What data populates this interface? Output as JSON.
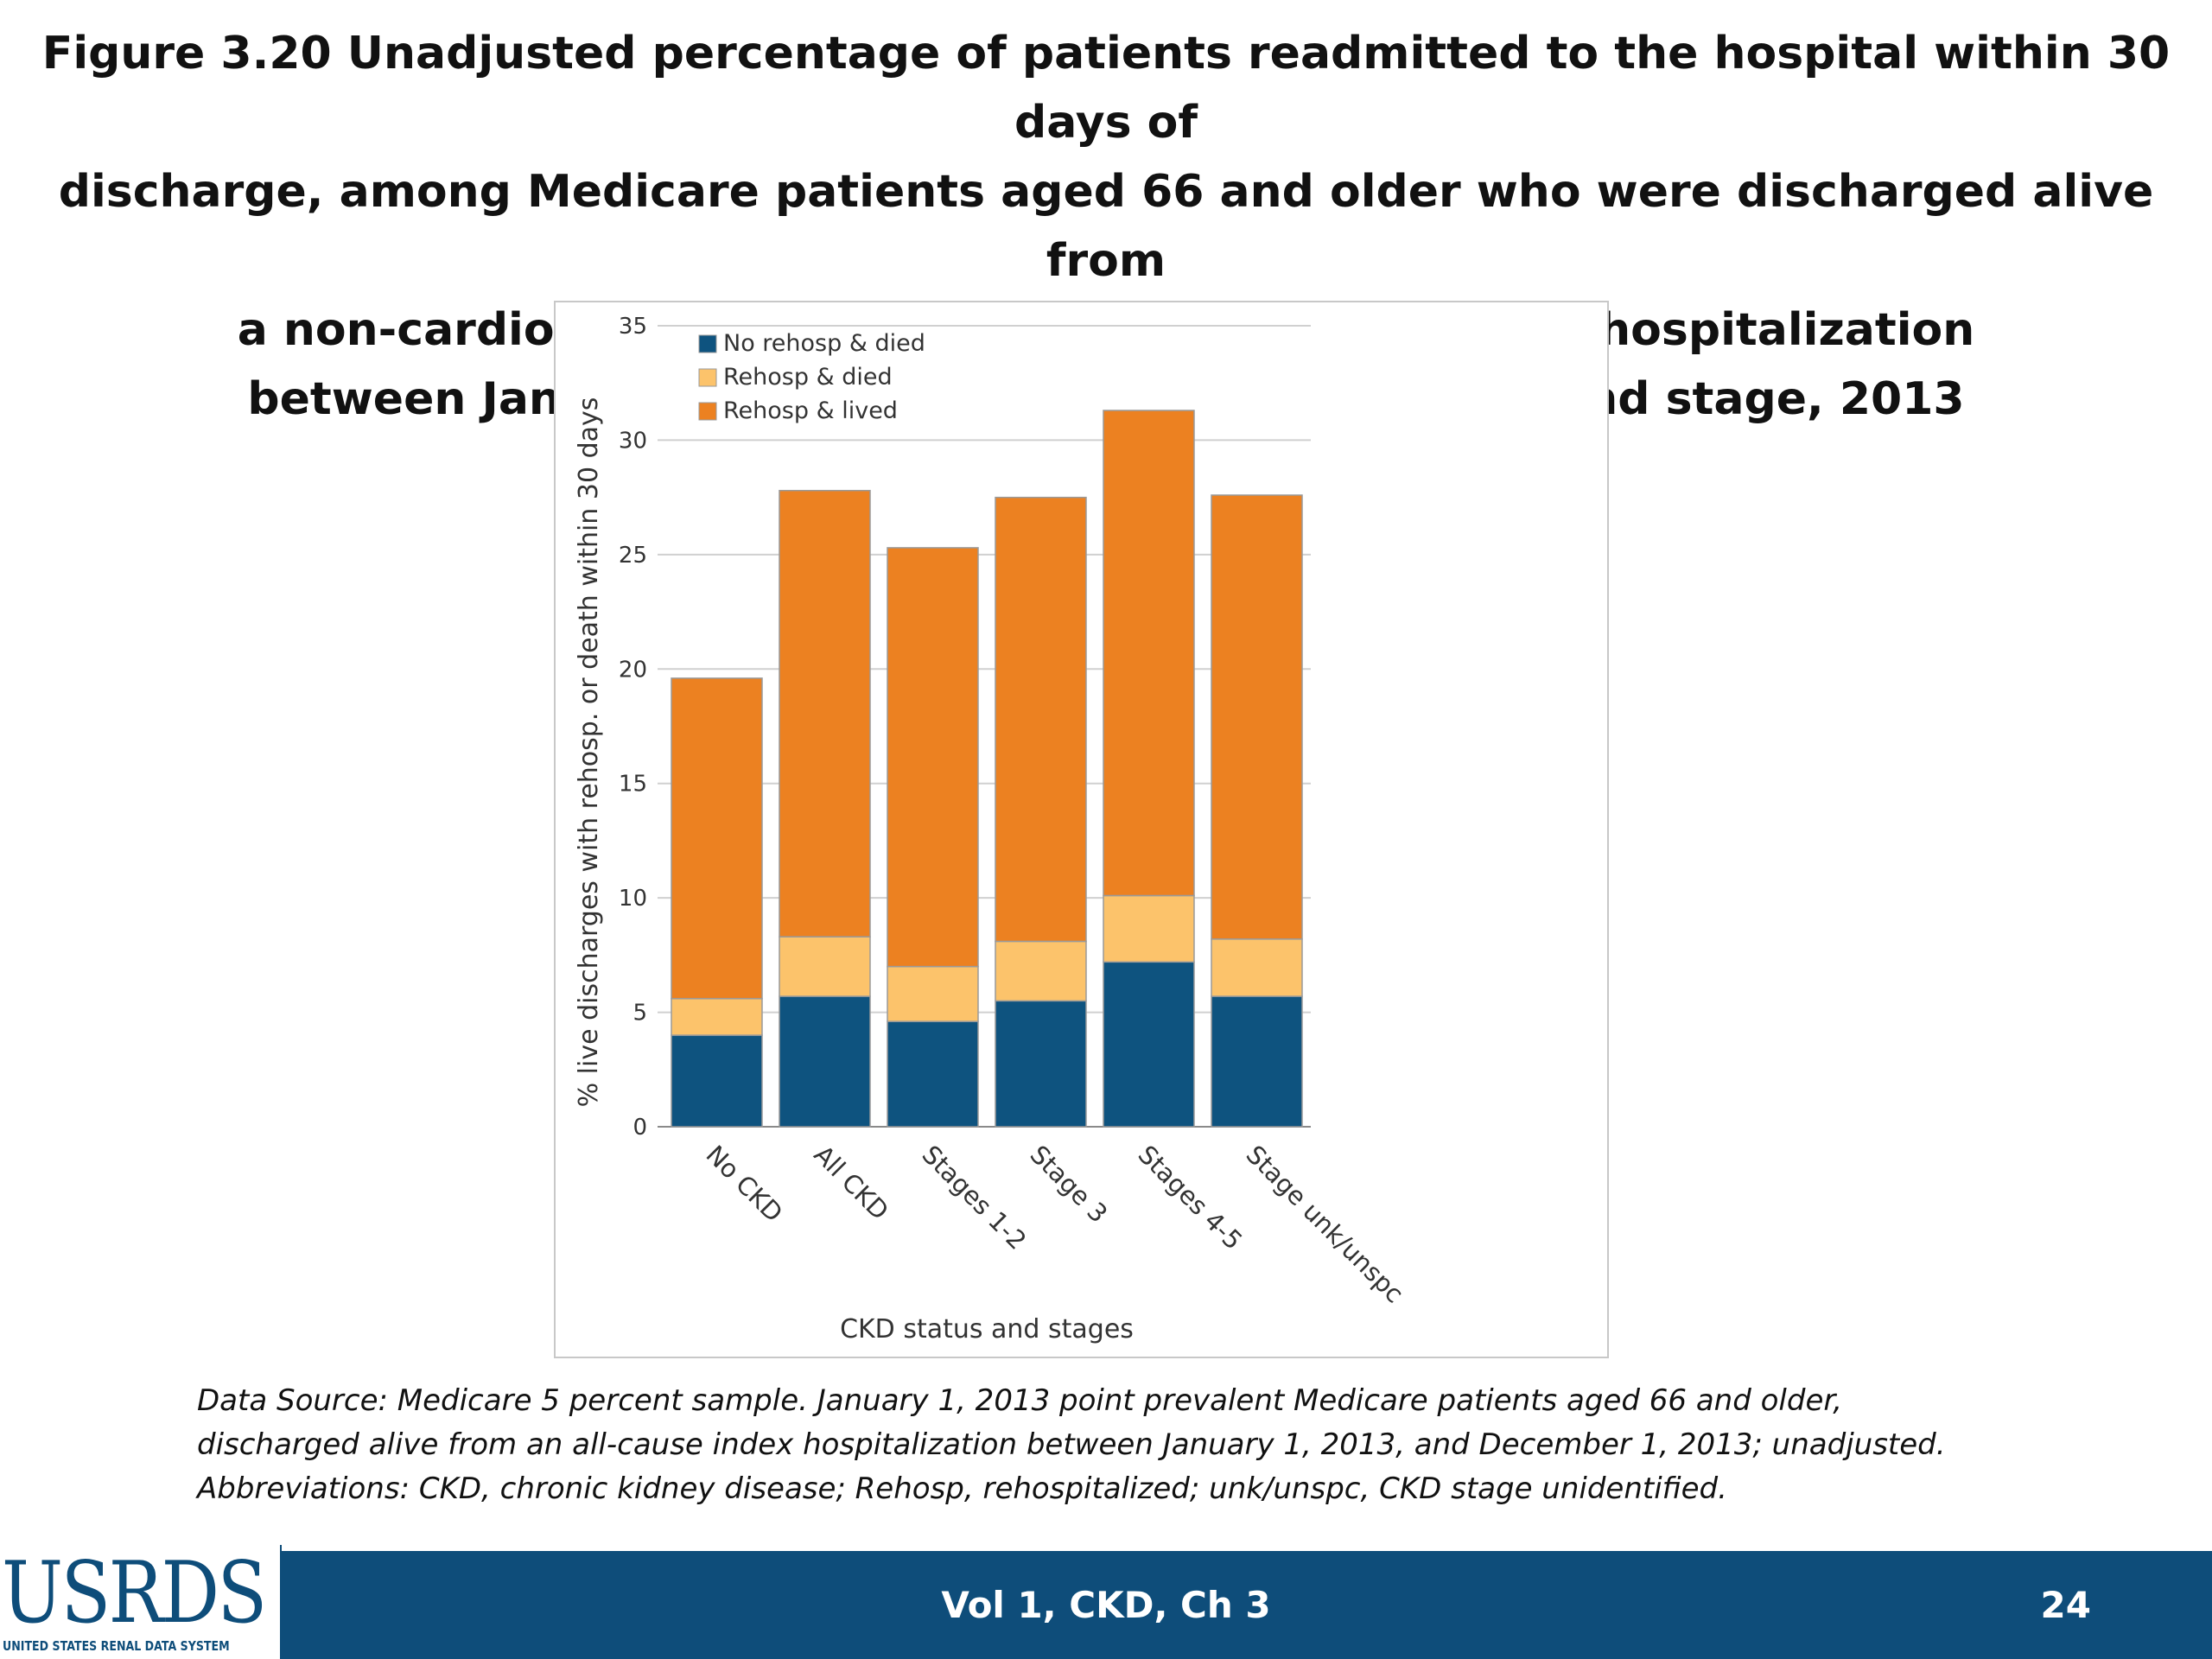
{
  "title_lines": [
    "Figure 3.20 Unadjusted percentage of patients readmitted to the hospital within 30 days of",
    "discharge, among Medicare patients aged 66 and older who were discharged alive from",
    "a non-cardiovascular and non-infection related index hospitalization",
    "between January 1 and December 1, by CKD status and stage, 2013"
  ],
  "chart_data": {
    "type": "bar",
    "stacked": true,
    "categories": [
      "No CKD",
      "All CKD",
      "Stages 1-2",
      "Stage 3",
      "Stages 4-5",
      "Stage unk/unspc"
    ],
    "series": [
      {
        "name": "No rehosp & died",
        "color": "#0e537f",
        "values": [
          4.0,
          5.7,
          4.6,
          5.5,
          7.2,
          5.7
        ]
      },
      {
        "name": "Rehosp & died",
        "color": "#fcc36b",
        "values": [
          1.6,
          2.6,
          2.4,
          2.6,
          2.9,
          2.5
        ]
      },
      {
        "name": "Rehosp & lived",
        "color": "#ec8121",
        "values": [
          14.0,
          19.5,
          18.3,
          19.4,
          21.2,
          19.4
        ]
      }
    ],
    "xlabel": "CKD status and stages",
    "ylabel": "% live discharges with rehosp. or death within 30 days",
    "ylim": [
      0,
      35
    ],
    "yticks": [
      0,
      5,
      10,
      15,
      20,
      25,
      30,
      35
    ],
    "grid": true,
    "legend_position": "top-left"
  },
  "source_lines": [
    "Data Source: Medicare 5 percent sample. January 1, 2013 point prevalent Medicare patients aged 66 and older,",
    "discharged alive from an all-cause index hospitalization between January 1, 2013, and December 1, 2013; unadjusted.",
    "Abbreviations: CKD, chronic kidney disease; Rehosp, rehospitalized; unk/unspc, CKD stage unidentified."
  ],
  "footer": {
    "logo_text": "USRDS",
    "logo_subtitle": "UNITED STATES RENAL DATA SYSTEM",
    "center_text": "Vol 1, CKD, Ch 3",
    "page_number": "24",
    "bar_color": "#0e4d7a"
  }
}
